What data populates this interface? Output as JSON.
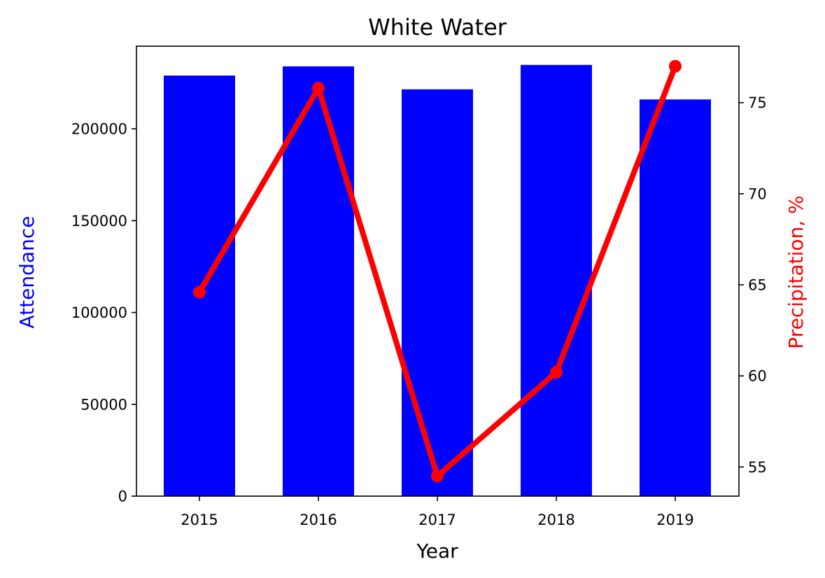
{
  "chart_data": {
    "type": "bar",
    "title": "White Water",
    "xlabel": "Year",
    "categories": [
      "2015",
      "2016",
      "2017",
      "2018",
      "2019"
    ],
    "primary_axis": {
      "label": "Attendance",
      "color": "#0000ff",
      "ylim": [
        0,
        245000
      ],
      "ticks": [
        0,
        50000,
        100000,
        150000,
        200000
      ],
      "tick_labels": [
        "0",
        "50000",
        "100000",
        "150000",
        "200000"
      ]
    },
    "secondary_axis": {
      "label": "Precipitation, %",
      "color": "#ff0000",
      "ylim": [
        53.4,
        78.1
      ],
      "ticks": [
        55,
        60,
        65,
        70,
        75
      ],
      "tick_labels": [
        "55",
        "60",
        "65",
        "70",
        "75"
      ]
    },
    "series": [
      {
        "name": "Attendance",
        "type": "bar",
        "axis": "left",
        "color": "#0000ff",
        "values": [
          229000,
          234000,
          221500,
          234800,
          216000
        ]
      },
      {
        "name": "Precipitation, %",
        "type": "line",
        "axis": "right",
        "color": "#ff0000",
        "marker": "circle",
        "values": [
          64.6,
          75.8,
          54.5,
          60.2,
          77.0
        ]
      }
    ],
    "grid": false
  }
}
